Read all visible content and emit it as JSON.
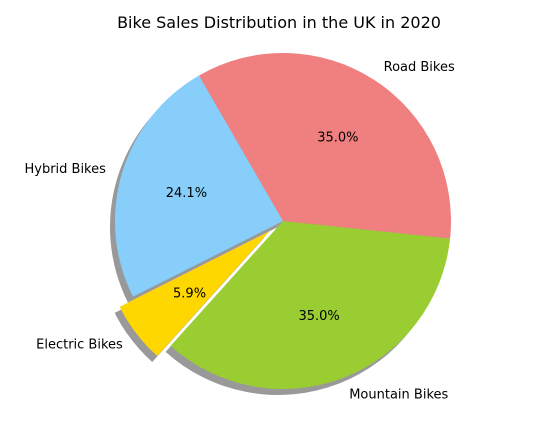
{
  "chart_data": {
    "type": "pie",
    "title": "Bike Sales Distribution in the UK in 2020",
    "start_angle_deg": 120,
    "direction": "counterclockwise",
    "shadow": true,
    "slices": [
      {
        "label": "Hybrid Bikes",
        "value": 24.1,
        "pct_label": "24.1%",
        "color": "#87CEFA",
        "explode": 0
      },
      {
        "label": "Electric Bikes",
        "value": 5.9,
        "pct_label": "5.9%",
        "color": "#FFD700",
        "explode": 0.1
      },
      {
        "label": "Mountain Bikes",
        "value": 35.0,
        "pct_label": "35.0%",
        "color": "#9ACD32",
        "explode": 0
      },
      {
        "label": "Road Bikes",
        "value": 35.0,
        "pct_label": "35.0%",
        "color": "#F08080",
        "explode": 0
      }
    ]
  }
}
